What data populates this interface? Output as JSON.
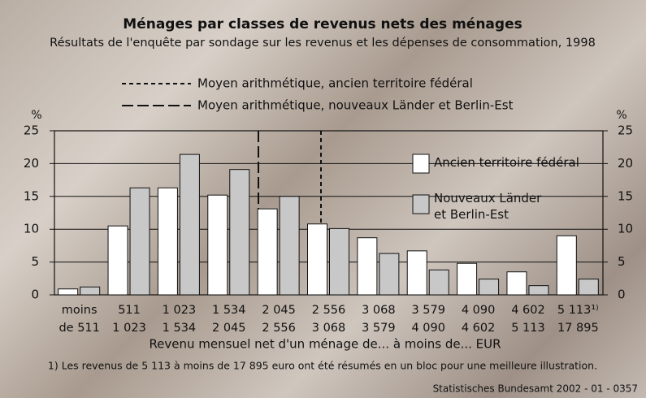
{
  "chart_data": {
    "type": "bar",
    "title": "Ménages par  classes de revenus nets des ménages",
    "subtitle": "Résultats de l'enquête par sondage sur les revenus et les dépenses de consommation, 1998",
    "mean_lines": [
      "Moyen arithmétique, ancien territoire fédéral",
      "Moyen arithmétique, nouveaux Länder et Berlin-Est"
    ],
    "y_unit": "%",
    "x_label": "Revenu mensuel net d'un ménage de... à moins de... EUR",
    "footnote": "1) Les revenus de 5 113 à moins de 17 895 euro ont été résumés en un bloc pour une meilleure illustration.",
    "source": "Statistisches Bundesamt 2002 - 01 - 0357",
    "categories": [
      [
        "moins",
        "de 511"
      ],
      [
        "511",
        "1 023"
      ],
      [
        "1 023",
        "1 534"
      ],
      [
        "1 534",
        "2 045"
      ],
      [
        "2 045",
        "2 556"
      ],
      [
        "2 556",
        "3 068"
      ],
      [
        "3 068",
        "3 579"
      ],
      [
        "3 579",
        "4 090"
      ],
      [
        "4 090",
        "4 602"
      ],
      [
        "4 602",
        "5 113"
      ],
      [
        "5 113¹⁾",
        "17 895"
      ]
    ],
    "series": [
      {
        "name": "Ancien territoire fédéral",
        "color": "#ffffff",
        "values": [
          0.9,
          10.5,
          16.3,
          15.2,
          13.1,
          10.8,
          8.7,
          6.7,
          4.8,
          3.5,
          9.0
        ]
      },
      {
        "name": "Nouveaux Länder et Berlin-Est",
        "color": "#c8c8c8",
        "values": [
          1.2,
          16.3,
          21.4,
          19.1,
          15.0,
          10.1,
          6.3,
          3.8,
          2.4,
          1.4,
          2.4
        ]
      }
    ],
    "ylim": [
      0,
      25
    ],
    "yticks": [
      0,
      5,
      10,
      15,
      20,
      25
    ],
    "grid": true
  }
}
